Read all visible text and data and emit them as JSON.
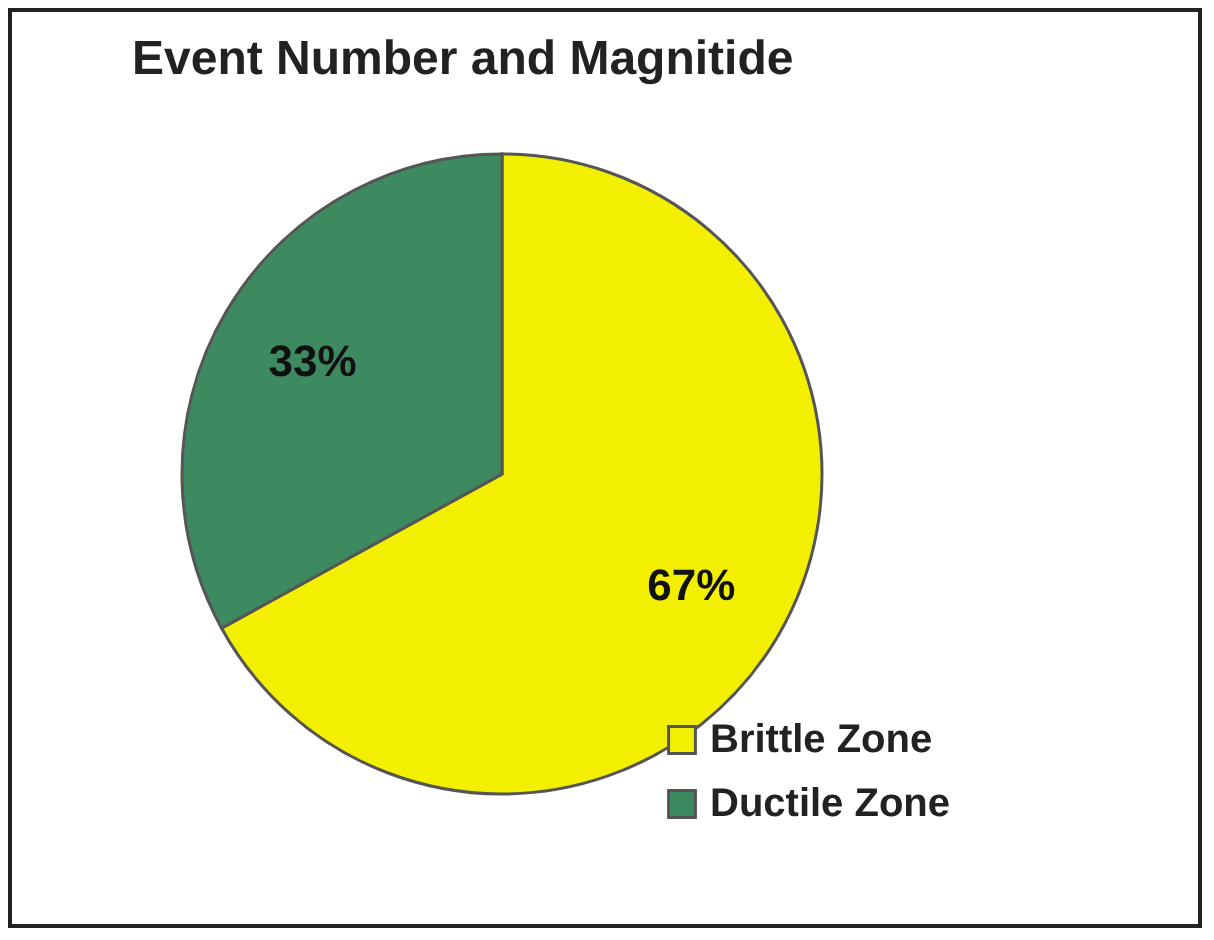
{
  "chart_data": {
    "type": "pie",
    "title": "Event Number and Magnitide",
    "categories": [
      "Brittle Zone",
      "Ductile Zone"
    ],
    "values": [
      67,
      33
    ],
    "colors": [
      "#f2f000",
      "#3e8a60"
    ],
    "value_labels": [
      "67%",
      "33%"
    ],
    "legend": "bottom right"
  }
}
